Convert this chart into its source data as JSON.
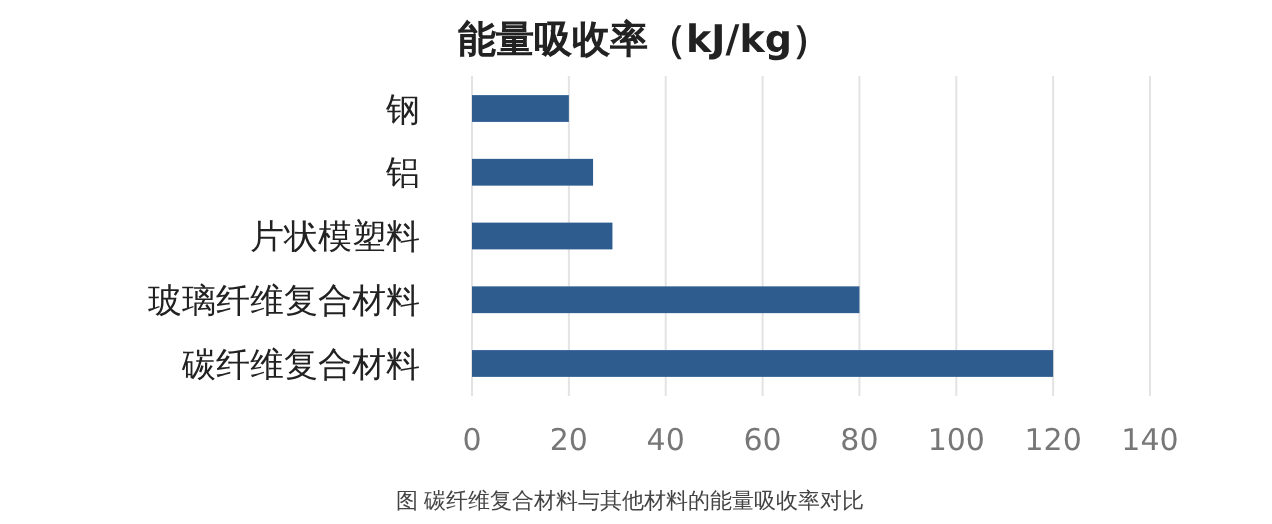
{
  "chart_data": {
    "type": "bar",
    "orientation": "horizontal",
    "title": "能量吸收率（kJ/kg）",
    "categories": [
      "钢",
      "铝",
      "片状模塑料",
      "玻璃纤维复合材料",
      "碳纤维复合材料"
    ],
    "values": [
      20,
      25,
      29,
      80,
      120
    ],
    "color": "#2e5c8f",
    "xlim": [
      0,
      140
    ],
    "xticks": [
      0,
      20,
      40,
      60,
      80,
      100,
      120,
      140
    ],
    "grid": "x",
    "annotations": [
      "图 碳纤维复合材料与其他材料的能量吸收率对比"
    ]
  }
}
